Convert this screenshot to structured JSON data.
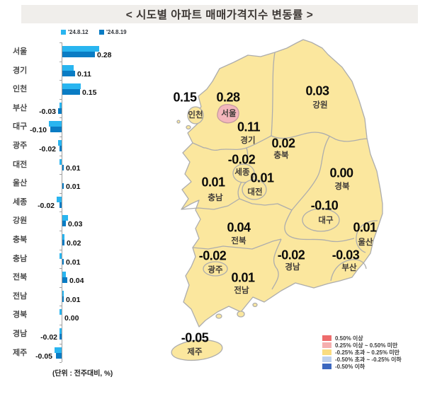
{
  "title": "< 시도별 아파트 매매가격지수 변동률 >",
  "chart_data": [
    {
      "type": "bar",
      "orientation": "horizontal",
      "title": "< 시도별 아파트 매매가격지수 변동률 >",
      "unit_note": "(단위 : 전주대비, %)",
      "categories": [
        "서울",
        "경기",
        "인천",
        "부산",
        "대구",
        "광주",
        "대전",
        "울산",
        "세종",
        "강원",
        "충북",
        "충남",
        "전북",
        "전남",
        "경북",
        "경남",
        "제주"
      ],
      "series": [
        {
          "name": "'24.8.12",
          "color": "#29B5F0",
          "values": [
            0.32,
            0.1,
            0.16,
            -0.02,
            -0.11,
            -0.03,
            -0.02,
            0.0,
            -0.04,
            0.05,
            0.02,
            -0.02,
            0.03,
            0.01,
            -0.02,
            -0.02,
            -0.06
          ]
        },
        {
          "name": "'24.8.19",
          "color": "#0A7CC4",
          "values": [
            0.28,
            0.11,
            0.15,
            -0.03,
            -0.1,
            -0.02,
            0.01,
            0.01,
            -0.02,
            0.03,
            0.02,
            0.01,
            0.04,
            0.01,
            0.0,
            -0.02,
            -0.05
          ]
        }
      ],
      "value_labels_from": "'24.8.19",
      "xlim": [
        -0.15,
        0.35
      ],
      "grid": false,
      "legend_position": "top"
    },
    {
      "type": "heatmap",
      "subtype": "choropleth-map",
      "title": "시도별 아파트 매매가격지수 변동률 지도",
      "regions": [
        {
          "key": "incheon",
          "name": "인천",
          "value": "0.15"
        },
        {
          "key": "seoul",
          "name": "서울",
          "value": "0.28",
          "highlighted": true
        },
        {
          "key": "gyeonggi",
          "name": "경기",
          "value": "0.11"
        },
        {
          "key": "gangwon",
          "name": "강원",
          "value": "0.03"
        },
        {
          "key": "chungbuk",
          "name": "충북",
          "value": "0.02"
        },
        {
          "key": "sejong",
          "name": "세종",
          "value": "-0.02"
        },
        {
          "key": "daejeon",
          "name": "대전",
          "value": "0.01"
        },
        {
          "key": "chungnam",
          "name": "충남",
          "value": "0.01"
        },
        {
          "key": "gyeongbuk",
          "name": "경북",
          "value": "0.00"
        },
        {
          "key": "daegu",
          "name": "대구",
          "value": "-0.10"
        },
        {
          "key": "ulsan",
          "name": "울산",
          "value": "0.01"
        },
        {
          "key": "jeonbuk",
          "name": "전북",
          "value": "0.04"
        },
        {
          "key": "gwangju",
          "name": "광주",
          "value": "-0.02"
        },
        {
          "key": "gyeongnam",
          "name": "경남",
          "value": "-0.02"
        },
        {
          "key": "busan",
          "name": "부산",
          "value": "-0.03"
        },
        {
          "key": "jeonnam",
          "name": "전남",
          "value": "0.01"
        },
        {
          "key": "jeju",
          "name": "제주",
          "value": "-0.05"
        }
      ],
      "colors": {
        "region_fill": "#FBE79E",
        "seoul_fill": "#F4B6BC",
        "border": "#ADADAD"
      },
      "legend": [
        {
          "label": "0.50% 이상",
          "color": "#EE6C6C"
        },
        {
          "label": "0.25% 이상 ~ 0.50% 미만",
          "color": "#F5AFAF"
        },
        {
          "label": "-0.25% 초과 ~ 0.25% 미만",
          "color": "#FADC80"
        },
        {
          "label": "-0.50% 초과 ~ -0.25% 이하",
          "color": "#BDD0ED"
        },
        {
          "label": "-0.50% 이하",
          "color": "#3C68BF"
        }
      ]
    }
  ]
}
